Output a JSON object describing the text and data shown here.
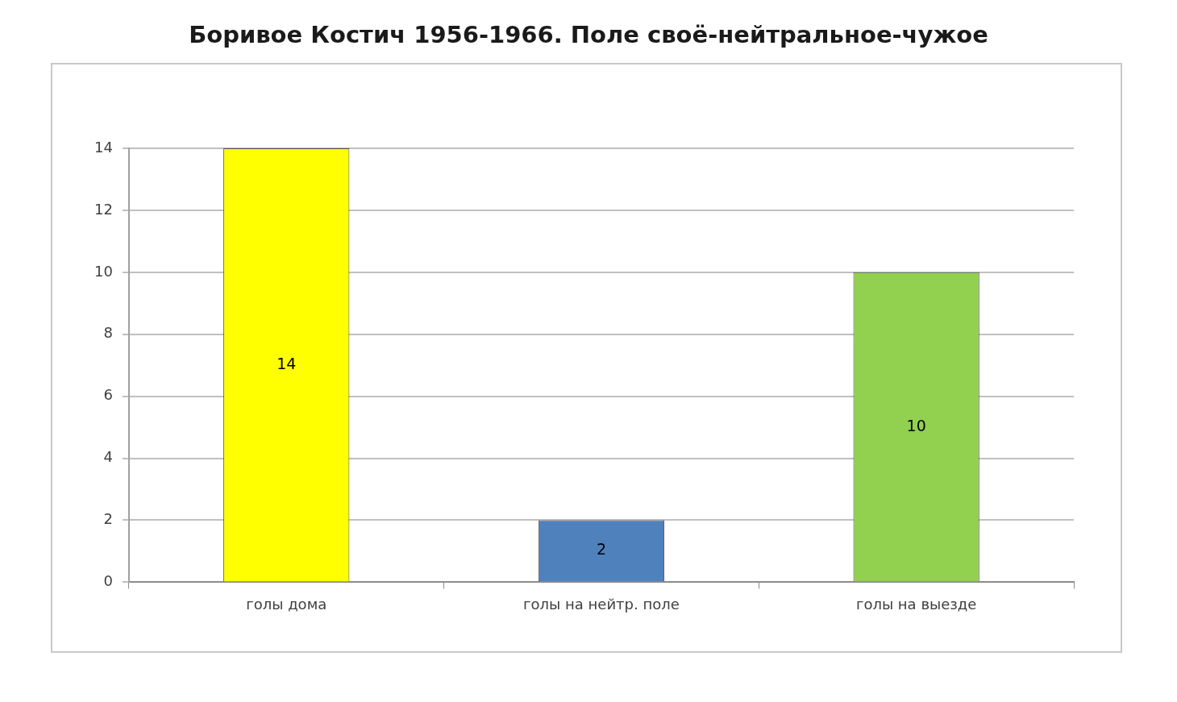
{
  "chart_data": {
    "type": "bar",
    "title": "Боривое Костич 1956-1966. Поле своё-нейтральное-чужое",
    "categories": [
      "голы дома",
      "голы на нейтр. поле",
      "голы на выезде"
    ],
    "values": [
      14,
      2,
      10
    ],
    "colors": [
      "#ffff00",
      "#4f81bd",
      "#92d050"
    ],
    "ylim": [
      0,
      14
    ],
    "yticks": [
      0,
      2,
      4,
      6,
      8,
      10,
      12,
      14
    ],
    "grid": "y",
    "data_labels": true
  }
}
